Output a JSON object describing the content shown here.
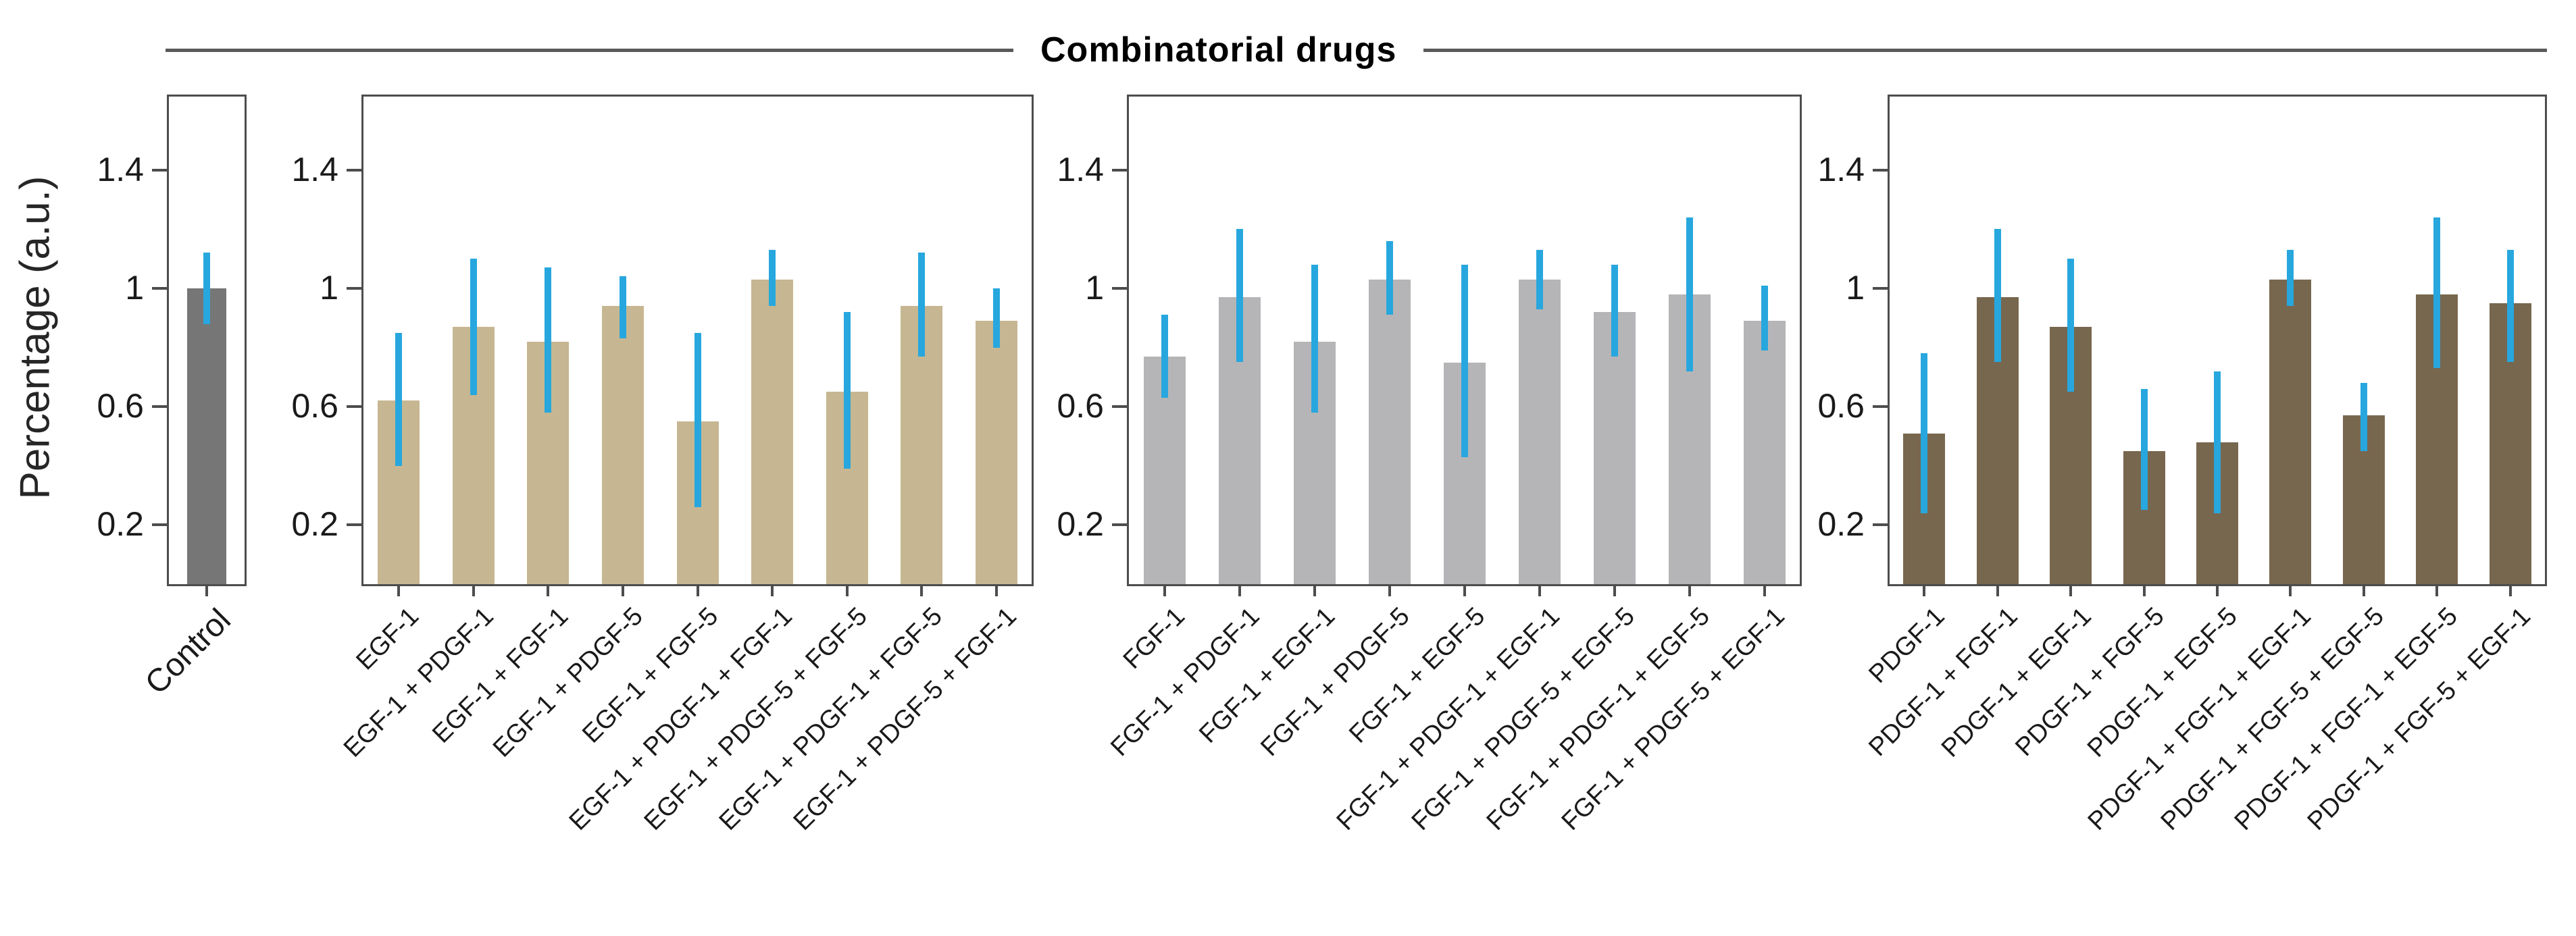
{
  "title": "Combinatorial drugs",
  "y_axis": {
    "label": "Percentage (a.u.)",
    "tick_labels": [
      "1.4",
      "1",
      "0.6",
      "0.2"
    ],
    "tick_values": [
      1.4,
      1,
      0.6,
      0.2
    ],
    "range": [
      0,
      1.66
    ]
  },
  "colors": {
    "error_bar": "#27a7de",
    "axis": "#4d4d4d",
    "control_bar": "#767677",
    "egf_group_bar": "#c6b792",
    "fgf_group_bar": "#b5b5b7",
    "pdgf_group_bar": "#77674f"
  },
  "chart_data": [
    {
      "type": "bar",
      "categories": [
        "Control"
      ],
      "values": [
        1.0
      ],
      "error_low": [
        0.88
      ],
      "error_high": [
        1.12
      ],
      "bar_color": "#767677",
      "ylabel": "Percentage (a.u.)",
      "ylim": [
        0,
        1.66
      ],
      "yticks": [
        0.2,
        0.6,
        1,
        1.4
      ],
      "grid": false,
      "legend": "none"
    },
    {
      "type": "bar",
      "categories": [
        "EGF-1",
        "EGF-1 + PDGF-1",
        "EGF-1 + FGF-1",
        "EGF-1 + PDGF-5",
        "EGF-1 + FGF-5",
        "EGF-1 + PDGF-1 + FGF-1",
        "EGF-1 + PDGF-5 + FGF-5",
        "EGF-1 + PDGF-1 + FGF-5",
        "EGF-1 + PDGF-5 + FGF-1"
      ],
      "values": [
        0.62,
        0.87,
        0.82,
        0.94,
        0.55,
        1.03,
        0.65,
        0.94,
        0.89
      ],
      "error_low": [
        0.4,
        0.64,
        0.58,
        0.83,
        0.26,
        0.94,
        0.39,
        0.77,
        0.8
      ],
      "error_high": [
        0.85,
        1.1,
        1.07,
        1.04,
        0.85,
        1.13,
        0.92,
        1.12,
        1.0
      ],
      "bar_color": "#c6b792",
      "ylabel": "",
      "ylim": [
        0,
        1.66
      ],
      "yticks": [
        0.2,
        0.6,
        1,
        1.4
      ],
      "grid": false,
      "legend": "none"
    },
    {
      "type": "bar",
      "categories": [
        "FGF-1",
        "FGF-1 + PDGF-1",
        "FGF-1 + EGF-1",
        "FGF-1 + PDGF-5",
        "FGF-1 + EGF-5",
        "FGF-1 + PDGF-1 + EGF-1",
        "FGF-1 + PDGF-5 + EGF-5",
        "FGF-1 + PDGF-1 + EGF-5",
        "FGF-1 + PDGF-5 + EGF-1"
      ],
      "values": [
        0.77,
        0.97,
        0.82,
        1.03,
        0.75,
        1.03,
        0.92,
        0.98,
        0.89
      ],
      "error_low": [
        0.63,
        0.75,
        0.58,
        0.91,
        0.43,
        0.93,
        0.77,
        0.72,
        0.79
      ],
      "error_high": [
        0.91,
        1.2,
        1.08,
        1.16,
        1.08,
        1.13,
        1.08,
        1.24,
        1.01
      ],
      "bar_color": "#b5b5b7",
      "ylabel": "",
      "ylim": [
        0,
        1.66
      ],
      "yticks": [
        0.2,
        0.6,
        1,
        1.4
      ],
      "grid": false,
      "legend": "none"
    },
    {
      "type": "bar",
      "categories": [
        "PDGF-1",
        "PDGF-1 + FGF-1",
        "PDGF-1 + EGF-1",
        "PDGF-1 + FGF-5",
        "PDGF-1 + EGF-5",
        "PDGF-1 + FGF-1 + EGF-1",
        "PDGF-1 + FGF-5 + EGF-5",
        "PDGF-1 + FGF-1 + EGF-5",
        "PDGF-1 + FGF-5 + EGF-1"
      ],
      "values": [
        0.51,
        0.97,
        0.87,
        0.45,
        0.48,
        1.03,
        0.57,
        0.98,
        0.95
      ],
      "error_low": [
        0.24,
        0.75,
        0.65,
        0.25,
        0.24,
        0.94,
        0.45,
        0.73,
        0.75
      ],
      "error_high": [
        0.78,
        1.2,
        1.1,
        0.66,
        0.72,
        1.13,
        0.68,
        1.24,
        1.13
      ],
      "bar_color": "#77674f",
      "ylabel": "",
      "ylim": [
        0,
        1.66
      ],
      "yticks": [
        0.2,
        0.6,
        1,
        1.4
      ],
      "grid": false,
      "legend": "none"
    }
  ]
}
